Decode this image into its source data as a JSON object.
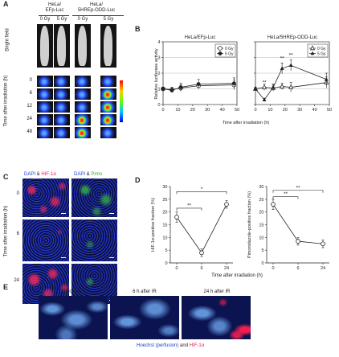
{
  "panel_a": {
    "letter": "A",
    "col_heads": [
      "HeLa/\nEFp-Luc",
      "HeLa/\n5HREp-ODD-Luc"
    ],
    "dose_labels": [
      "0 Gy",
      "5 Gy",
      "0 Gy",
      "5 Gy"
    ],
    "row_label_bf": "Bright field",
    "y_title": "Time after irradiation (h)",
    "time_rows": [
      "0",
      "6",
      "12",
      "24",
      "48"
    ],
    "colors": {
      "bf_bg": "#161616",
      "body": "#cfcfcf",
      "signal_blue": "#2d5bff",
      "signal_hot": "#ff3a1e"
    }
  },
  "panel_b": {
    "letter": "B",
    "ylabel": "Relative luciferase activity",
    "xlabel": "Time after irradiation (h)",
    "sig_marks": [
      "**",
      "**",
      "**"
    ]
  },
  "panel_c": {
    "letter": "C",
    "head1": {
      "a": "DAPI",
      "amp": " & ",
      "b": "HIF-1α"
    },
    "head2": {
      "a": "DAPI",
      "amp": " & ",
      "b": "Pimo"
    },
    "y_title": "Time after irradiation (h)",
    "rows": [
      "0",
      "6",
      "24"
    ]
  },
  "panel_d": {
    "letter": "D",
    "xlabel": "Time after irradiation (h)",
    "sig_marks": [
      "*",
      "**",
      "**",
      "**"
    ]
  },
  "panel_e": {
    "letter": "E",
    "labels": [
      "Before IR",
      "6 h after IR",
      "24 h after IR"
    ],
    "caption": {
      "a": "Hoechst (perfusion)",
      "amp": " and ",
      "b": "HIF-1α"
    }
  },
  "chart_data": [
    {
      "type": "line",
      "title": "HeLa/EFp-Luc",
      "xlabel": "Time after irradiation (h)",
      "ylabel": "Relative luciferase activity",
      "xlim": [
        0,
        50
      ],
      "ylim": [
        0,
        4
      ],
      "xticks": [
        0,
        10,
        20,
        30,
        40,
        50
      ],
      "yticks": [
        0,
        1,
        2,
        3,
        4
      ],
      "legend": "top-right",
      "series": [
        {
          "name": "0 Gy",
          "marker": "open-circle",
          "x": [
            0,
            6,
            12,
            24,
            48
          ],
          "y": [
            1.0,
            0.95,
            1.05,
            1.2,
            1.25
          ],
          "err": [
            0.1,
            0.15,
            0.2,
            0.2,
            0.3
          ]
        },
        {
          "name": "5 Gy",
          "marker": "filled-circle",
          "x": [
            0,
            6,
            12,
            24,
            48
          ],
          "y": [
            1.0,
            0.9,
            1.1,
            1.3,
            1.35
          ],
          "err": [
            0.1,
            0.15,
            0.25,
            0.3,
            0.35
          ]
        }
      ]
    },
    {
      "type": "line",
      "title": "HeLa/5HREp-ODD-Luc",
      "xlabel": "Time after irradiation (h)",
      "xlim": [
        0,
        50
      ],
      "ylim": [
        0,
        4
      ],
      "xticks": [
        0,
        10,
        20,
        30,
        40,
        50
      ],
      "yticks": [
        0,
        1,
        2,
        3,
        4
      ],
      "legend": "top-right",
      "series": [
        {
          "name": "0 Gy",
          "marker": "open-triangle",
          "x": [
            0,
            6,
            12,
            18,
            24,
            48
          ],
          "y": [
            1.0,
            1.1,
            1.05,
            1.15,
            1.1,
            1.4
          ],
          "err": [
            0.1,
            0.2,
            0.2,
            0.2,
            0.3,
            0.35
          ]
        },
        {
          "name": "5 Gy",
          "marker": "filled-triangle",
          "x": [
            0,
            6,
            12,
            18,
            24,
            48
          ],
          "y": [
            1.0,
            0.3,
            1.1,
            2.3,
            2.5,
            1.6
          ],
          "err": [
            0.1,
            0.1,
            0.2,
            0.35,
            0.35,
            0.4
          ]
        }
      ]
    },
    {
      "type": "line",
      "ylabel": "HIF-1α-positive fraction (%)",
      "categories": [
        "0",
        "6",
        "24"
      ],
      "ylim": [
        0,
        30
      ],
      "yticks": [
        0,
        5,
        10,
        15,
        20,
        25,
        30
      ],
      "series": [
        {
          "marker": "open-circle",
          "values": [
            18,
            4,
            23
          ],
          "err": [
            2,
            1.5,
            1.5
          ]
        }
      ]
    },
    {
      "type": "line",
      "ylabel": "Pimonidazole-positive fraction (%)",
      "categories": [
        "0",
        "6",
        "24"
      ],
      "ylim": [
        0,
        30
      ],
      "yticks": [
        0,
        5,
        10,
        15,
        20,
        25,
        30
      ],
      "series": [
        {
          "marker": "open-circle",
          "values": [
            23,
            8.5,
            7.5
          ],
          "err": [
            2,
            1.5,
            1.5
          ]
        }
      ]
    }
  ]
}
